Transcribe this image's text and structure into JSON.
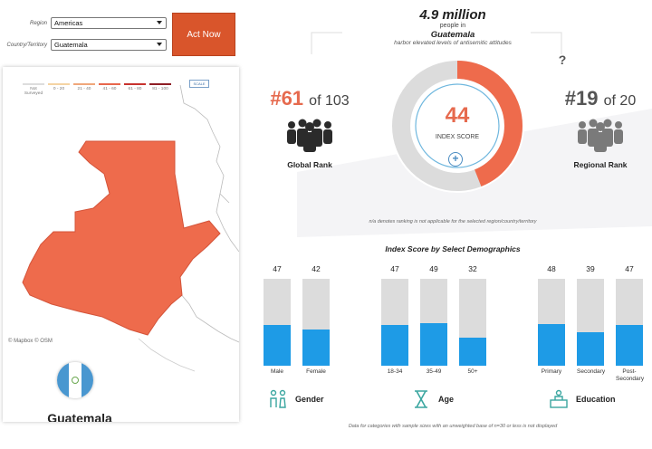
{
  "filters": {
    "region_label": "Region",
    "region_value": "Americas",
    "country_label": "Country/Territory",
    "country_value": "Guatemala"
  },
  "act_button": "Act Now",
  "legend": {
    "items": [
      {
        "label": "Not Surveyed",
        "color": "#dddddd"
      },
      {
        "label": "0 - 20",
        "color": "#f5d4a3"
      },
      {
        "label": "21 - 40",
        "color": "#f0a77b"
      },
      {
        "label": "41 - 60",
        "color": "#e8674d"
      },
      {
        "label": "61 - 80",
        "color": "#c8322e"
      },
      {
        "label": "81 - 100",
        "color": "#8e1e25"
      }
    ],
    "scale": "SCALE"
  },
  "map_attribution": "© Mapbox © OSM",
  "country_name": "Guatemala",
  "headline": {
    "count": "4.9 million",
    "line1": "people in",
    "country": "Guatemala",
    "line2": "harbor elevated levels of antisemitic attitudes"
  },
  "global_rank": {
    "rank": "#61",
    "of": "of 103",
    "label": "Global Rank"
  },
  "regional_rank": {
    "rank": "#19",
    "of": "of 20",
    "label": "Regional Rank"
  },
  "index": {
    "score": "44",
    "label": "INDEX SCORE",
    "fill_percent": 44
  },
  "ranking_note": "n/a denotes ranking is not applicable for the selected region/country/territory",
  "demographics_title": "Index Score by Select Demographics",
  "demographics": {
    "gender": {
      "label": "Gender",
      "bars": [
        {
          "category": "Male",
          "value": 47
        },
        {
          "category": "Female",
          "value": 42
        }
      ]
    },
    "age": {
      "label": "Age",
      "bars": [
        {
          "category": "18-34",
          "value": 47
        },
        {
          "category": "35-49",
          "value": 49
        },
        {
          "category": "50+",
          "value": 32
        }
      ]
    },
    "education": {
      "label": "Education",
      "bars": [
        {
          "category": "Primary",
          "value": 48
        },
        {
          "category": "Secondary",
          "value": 39
        },
        {
          "category": "Post-Secondary",
          "value": 47
        }
      ]
    }
  },
  "footnote": "Data for categories with sample sizes with an unweighted base of n=30 or less is not displayed",
  "colors": {
    "accent": "#e66a4e",
    "bar": "#1e9be6",
    "track": "#dcdcdc",
    "button": "#d9552b"
  }
}
